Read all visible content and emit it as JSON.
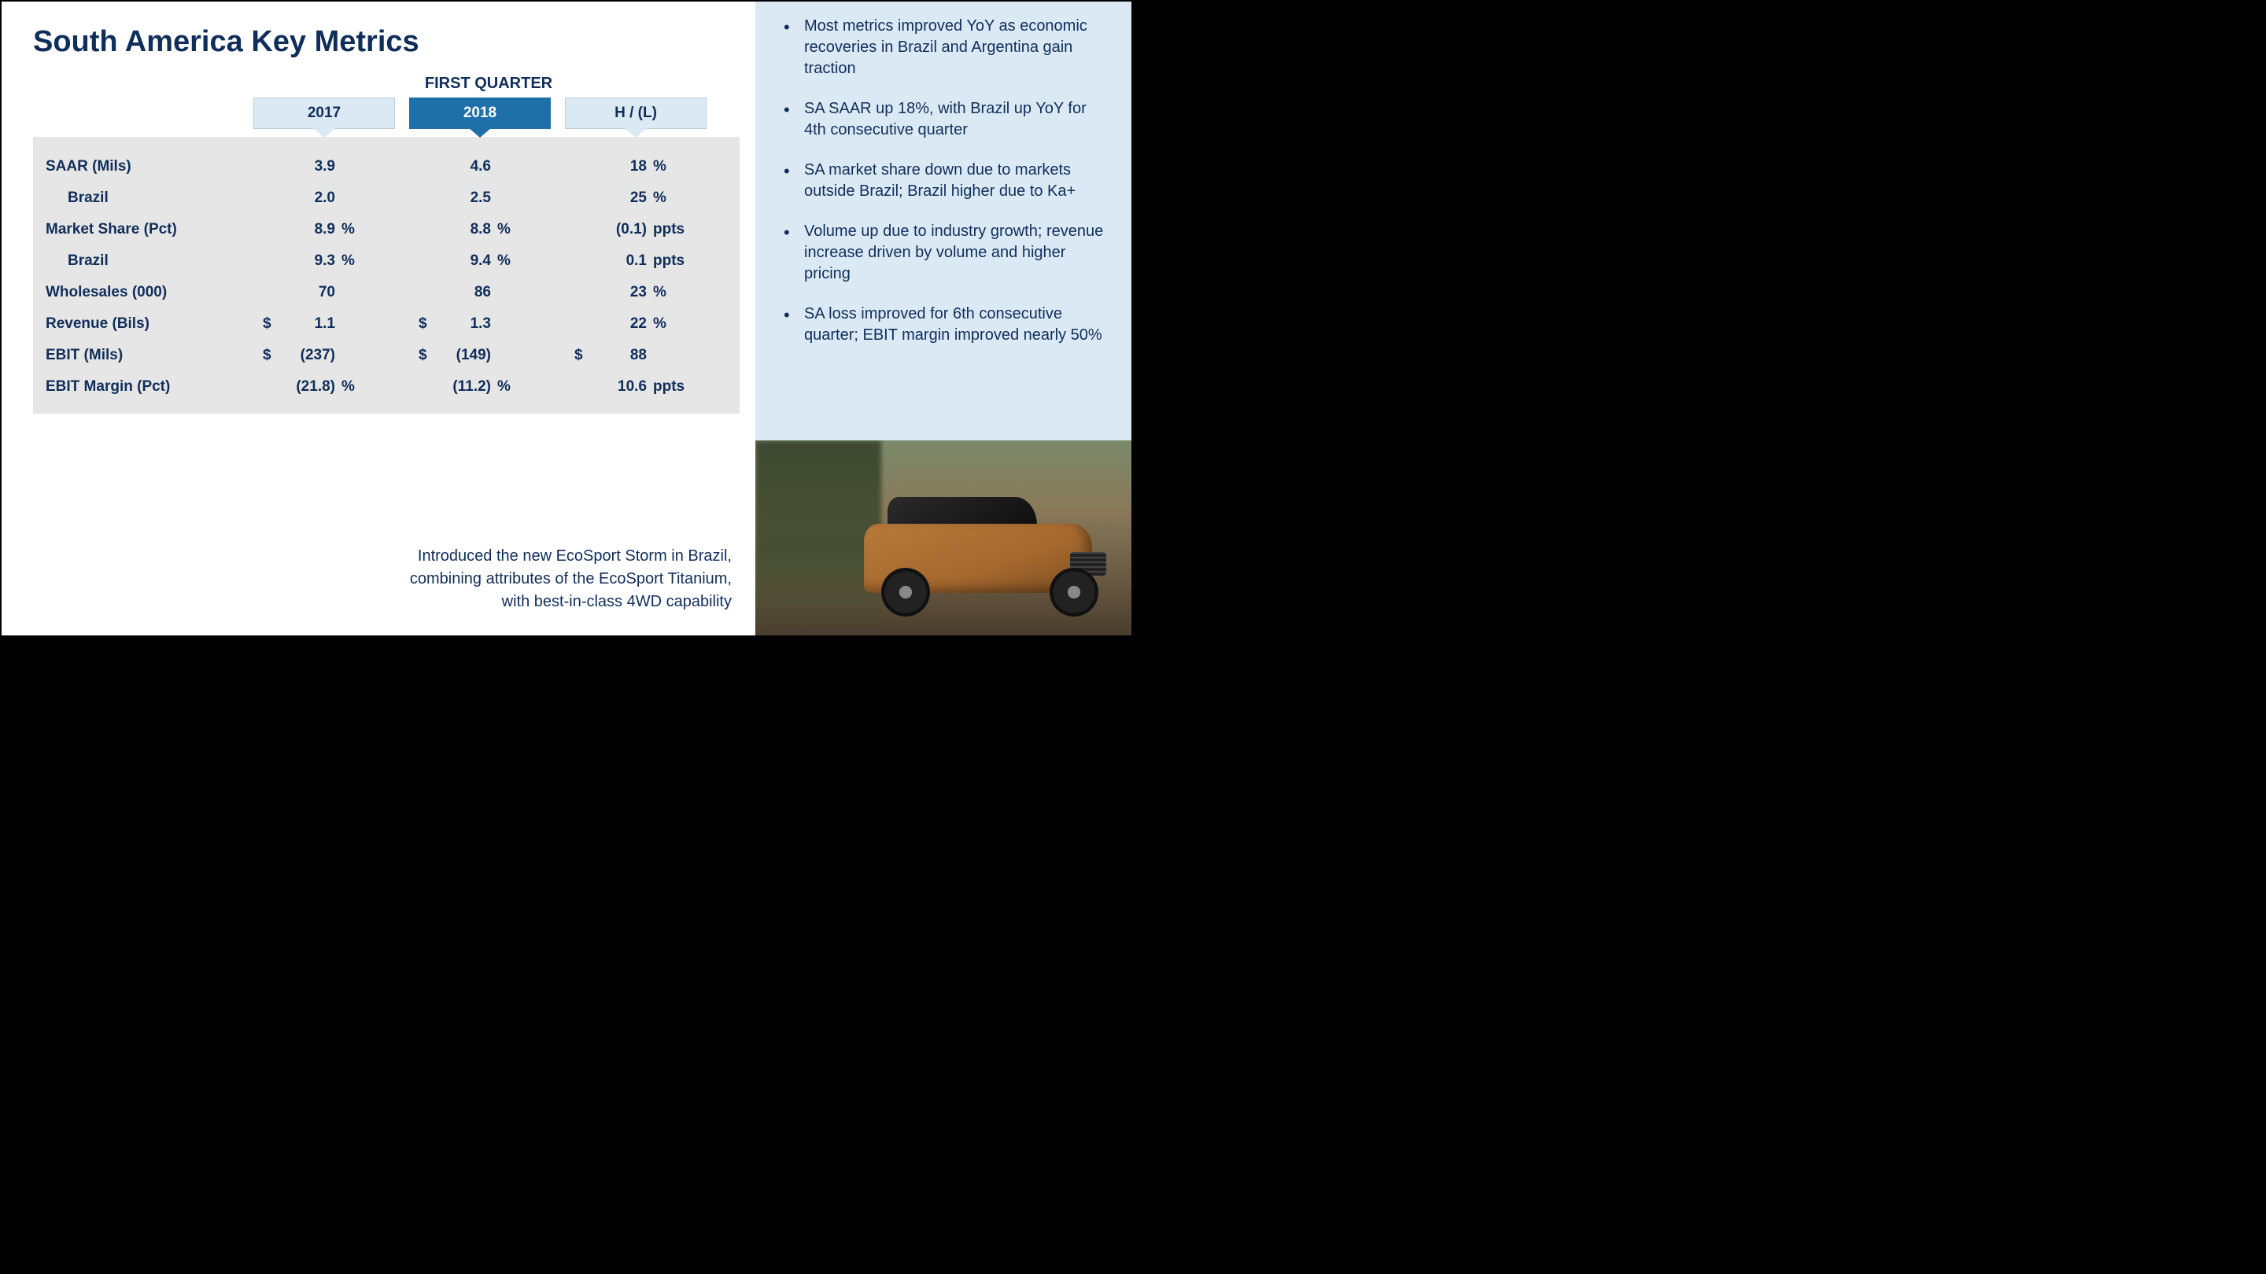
{
  "title": "South America Key Metrics",
  "quarter_label": "FIRST QUARTER",
  "columns": {
    "c1": "2017",
    "c2": "2018",
    "c3": "H / (L)"
  },
  "rows": [
    {
      "label": "SAAR (Mils)",
      "indent": false,
      "c1": {
        "cur": "",
        "val": "3.9",
        "unit": ""
      },
      "c2": {
        "cur": "",
        "val": "4.6",
        "unit": ""
      },
      "c3": {
        "cur": "",
        "val": "18",
        "unit": "%"
      }
    },
    {
      "label": "Brazil",
      "indent": true,
      "c1": {
        "cur": "",
        "val": "2.0",
        "unit": ""
      },
      "c2": {
        "cur": "",
        "val": "2.5",
        "unit": ""
      },
      "c3": {
        "cur": "",
        "val": "25",
        "unit": "%"
      }
    },
    {
      "label": "Market Share (Pct)",
      "indent": false,
      "c1": {
        "cur": "",
        "val": "8.9",
        "unit": "%"
      },
      "c2": {
        "cur": "",
        "val": "8.8",
        "unit": "%"
      },
      "c3": {
        "cur": "",
        "val": "(0.1)",
        "unit": "ppts"
      }
    },
    {
      "label": "Brazil",
      "indent": true,
      "c1": {
        "cur": "",
        "val": "9.3",
        "unit": "%"
      },
      "c2": {
        "cur": "",
        "val": "9.4",
        "unit": "%"
      },
      "c3": {
        "cur": "",
        "val": "0.1",
        "unit": "ppts"
      }
    },
    {
      "label": "Wholesales (000)",
      "indent": false,
      "c1": {
        "cur": "",
        "val": "70",
        "unit": ""
      },
      "c2": {
        "cur": "",
        "val": "86",
        "unit": ""
      },
      "c3": {
        "cur": "",
        "val": "23",
        "unit": "%"
      }
    },
    {
      "label": "Revenue (Bils)",
      "indent": false,
      "c1": {
        "cur": "$",
        "val": "1.1",
        "unit": ""
      },
      "c2": {
        "cur": "$",
        "val": "1.3",
        "unit": ""
      },
      "c3": {
        "cur": "",
        "val": "22",
        "unit": "%"
      }
    },
    {
      "label": "EBIT (Mils)",
      "indent": false,
      "c1": {
        "cur": "$",
        "val": "(237)",
        "unit": ""
      },
      "c2": {
        "cur": "$",
        "val": "(149)",
        "unit": ""
      },
      "c3": {
        "cur": "$",
        "val": "88",
        "unit": ""
      }
    },
    {
      "label": "EBIT Margin (Pct)",
      "indent": false,
      "c1": {
        "cur": "",
        "val": "(21.8)",
        "unit": "%"
      },
      "c2": {
        "cur": "",
        "val": "(11.2)",
        "unit": "%"
      },
      "c3": {
        "cur": "",
        "val": "10.6",
        "unit": "ppts"
      }
    }
  ],
  "caption": "Introduced the new EcoSport Storm in Brazil, combining attributes of the EcoSport Titanium, with best-in-class 4WD capability",
  "bullets": [
    "Most metrics improved YoY as economic recoveries in Brazil and Argentina gain traction",
    "SA SAAR up 18%, with Brazil up YoY for 4th consecutive quarter",
    "SA market share down due to markets outside Brazil; Brazil higher due to Ka+",
    "Volume up due to industry growth; revenue increase driven by volume and higher pricing",
    "SA loss improved for 6th consecutive quarter; EBIT margin improved nearly 50%"
  ],
  "colors": {
    "title": "#102e5a",
    "header_light_bg": "#dbe9f5",
    "header_dark_bg": "#1f6fa8",
    "table_bg": "#e6e6e6",
    "side_bg": "#dbe9f5"
  }
}
